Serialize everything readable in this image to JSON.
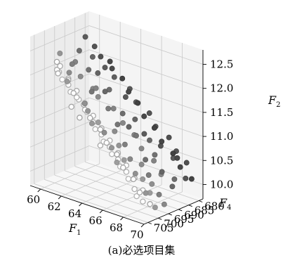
{
  "caption": "(a)必选项目集",
  "chart_data": {
    "type": "scatter",
    "projection": "3d",
    "title": "",
    "axes": {
      "x": {
        "label": "F",
        "subscript": "1",
        "ticks": [
          60,
          62,
          64,
          66,
          68,
          70
        ],
        "tick_labels": [
          "60",
          "62",
          "64",
          "66",
          "68",
          "70"
        ],
        "range": [
          59,
          70
        ]
      },
      "y": {
        "label": "F",
        "subscript": "4",
        "ticks": [
          680,
          685,
          690,
          695,
          700,
          705
        ],
        "tick_labels": [
          "680",
          "685",
          "690",
          "695",
          "700",
          "705"
        ],
        "range": [
          678,
          707
        ]
      },
      "z": {
        "label": "F",
        "subscript": "2",
        "ticks": [
          10.0,
          10.5,
          11.0,
          11.5,
          12.0,
          12.5
        ],
        "tick_labels": [
          "10.0",
          "10.5",
          "11.0",
          "11.5",
          "12.0",
          "12.5"
        ],
        "range": [
          9.7,
          12.8
        ]
      }
    },
    "grid": true,
    "colors": {
      "pane_left": "#ececec",
      "pane_right": "#f4f4f4",
      "pane_floor": "#f7f7f7",
      "point_dark": "#3a3a3a",
      "point_light": "#b5b5b5"
    },
    "series": [
      {
        "points": [
          [
            60.5,
            694,
            12.1
          ],
          [
            60.8,
            697,
            12.0
          ],
          [
            61.2,
            700,
            11.9
          ],
          [
            61.5,
            691,
            12.0
          ],
          [
            61.8,
            688,
            11.9
          ],
          [
            62.2,
            703,
            11.5
          ],
          [
            62.5,
            698,
            11.5
          ],
          [
            62.8,
            702,
            11.3
          ],
          [
            63.0,
            695,
            11.8
          ],
          [
            63.3,
            690,
            11.7
          ],
          [
            63.6,
            700,
            11.2
          ],
          [
            63.9,
            685,
            11.5
          ],
          [
            64.2,
            697,
            11.0
          ],
          [
            64.5,
            692,
            11.1
          ],
          [
            64.8,
            688,
            11.0
          ],
          [
            65.0,
            703,
            10.9
          ],
          [
            65.3,
            699,
            10.8
          ],
          [
            65.6,
            694,
            10.8
          ],
          [
            65.9,
            686,
            10.9
          ],
          [
            66.2,
            701,
            10.6
          ],
          [
            66.5,
            696,
            10.6
          ],
          [
            66.8,
            690,
            10.5
          ],
          [
            67.1,
            684,
            10.7
          ],
          [
            67.4,
            698,
            10.4
          ],
          [
            67.7,
            693,
            10.3
          ],
          [
            68.0,
            688,
            10.3
          ],
          [
            68.3,
            682,
            10.5
          ],
          [
            68.6,
            699,
            10.1
          ],
          [
            68.9,
            694,
            10.0
          ],
          [
            69.2,
            689,
            10.1
          ],
          [
            69.5,
            684,
            10.2
          ],
          [
            69.7,
            700,
            9.9
          ],
          [
            69.8,
            696,
            9.9
          ],
          [
            60.3,
            699,
            12.4
          ],
          [
            60.6,
            702,
            12.3
          ],
          [
            61.0,
            704,
            12.2
          ],
          [
            61.4,
            705,
            12.2
          ],
          [
            61.9,
            706,
            12.1
          ],
          [
            62.3,
            705,
            12.0
          ],
          [
            62.7,
            706,
            11.9
          ],
          [
            63.1,
            705,
            11.8
          ],
          [
            63.5,
            706,
            11.8
          ],
          [
            63.9,
            705,
            11.6
          ],
          [
            64.3,
            706,
            11.6
          ],
          [
            64.7,
            705,
            11.4
          ],
          [
            65.1,
            706,
            11.3
          ],
          [
            65.5,
            705,
            11.2
          ],
          [
            65.9,
            706,
            11.1
          ],
          [
            66.3,
            705,
            11.0
          ],
          [
            66.7,
            706,
            10.9
          ],
          [
            67.1,
            705,
            10.8
          ],
          [
            67.5,
            706,
            10.7
          ],
          [
            67.9,
            705,
            10.6
          ],
          [
            68.3,
            706,
            10.5
          ],
          [
            68.7,
            705,
            10.3
          ],
          [
            69.1,
            706,
            10.2
          ],
          [
            69.5,
            705,
            10.1
          ],
          [
            60.9,
            703,
            12.1
          ],
          [
            61.7,
            702,
            12.0
          ],
          [
            62.4,
            703,
            11.8
          ],
          [
            63.2,
            702,
            11.6
          ],
          [
            64.0,
            703,
            11.4
          ],
          [
            64.8,
            702,
            11.2
          ],
          [
            65.6,
            703,
            11.0
          ],
          [
            66.4,
            702,
            10.8
          ],
          [
            67.2,
            703,
            10.6
          ],
          [
            68.0,
            702,
            10.4
          ],
          [
            68.8,
            703,
            10.2
          ],
          [
            69.6,
            702,
            10.0
          ],
          [
            61.3,
            704,
            12.3
          ],
          [
            62.1,
            704,
            12.1
          ],
          [
            62.9,
            704,
            11.9
          ],
          [
            63.7,
            704,
            11.7
          ],
          [
            64.5,
            704,
            11.5
          ],
          [
            65.3,
            704,
            11.3
          ],
          [
            66.1,
            704,
            11.1
          ],
          [
            66.9,
            704,
            10.9
          ],
          [
            67.7,
            704,
            10.7
          ],
          [
            68.5,
            704,
            10.5
          ],
          [
            69.3,
            704,
            10.3
          ],
          [
            60.2,
            686,
            12.5
          ],
          [
            60.7,
            684,
            12.3
          ],
          [
            61.1,
            683,
            12.1
          ],
          [
            61.6,
            681,
            12.0
          ],
          [
            62.0,
            682,
            11.9
          ],
          [
            62.6,
            680,
            11.7
          ],
          [
            63.4,
            681,
            11.5
          ],
          [
            64.1,
            680,
            11.3
          ],
          [
            64.9,
            681,
            11.1
          ],
          [
            65.7,
            680,
            10.9
          ],
          [
            66.6,
            681,
            10.7
          ],
          [
            67.5,
            680,
            10.5
          ],
          [
            68.4,
            681,
            10.3
          ],
          [
            69.3,
            680,
            10.1
          ],
          [
            63.0,
            699,
            11.4
          ],
          [
            64.4,
            701,
            11.3
          ],
          [
            65.2,
            697,
            11.1
          ],
          [
            66.0,
            699,
            10.9
          ],
          [
            66.9,
            701,
            10.7
          ],
          [
            67.8,
            697,
            10.6
          ],
          [
            68.5,
            700,
            10.4
          ],
          [
            69.0,
            698,
            10.3
          ],
          [
            69.4,
            701,
            10.2
          ],
          [
            62.0,
            692,
            11.6
          ],
          [
            62.7,
            689,
            11.6
          ],
          [
            63.8,
            693,
            11.4
          ],
          [
            64.6,
            690,
            11.3
          ],
          [
            65.4,
            688,
            11.2
          ],
          [
            66.3,
            692,
            11.0
          ],
          [
            67.0,
            689,
            10.9
          ],
          [
            67.9,
            691,
            10.7
          ],
          [
            68.7,
            686,
            10.6
          ],
          [
            69.6,
            690,
            10.3
          ],
          [
            61.0,
            695,
            12.2
          ],
          [
            61.9,
            697,
            12.0
          ],
          [
            62.9,
            696,
            11.8
          ],
          [
            63.6,
            697,
            11.7
          ],
          [
            64.7,
            695,
            11.5
          ],
          [
            65.8,
            696,
            11.3
          ],
          [
            66.7,
            695,
            11.1
          ],
          [
            67.6,
            696,
            10.9
          ],
          [
            68.6,
            695,
            10.7
          ],
          [
            69.5,
            696,
            10.5
          ],
          [
            60.4,
            690,
            12.3
          ],
          [
            61.3,
            688,
            12.2
          ],
          [
            62.1,
            686,
            12.0
          ],
          [
            63.2,
            687,
            11.9
          ],
          [
            64.3,
            685,
            11.7
          ],
          [
            65.1,
            686,
            11.5
          ],
          [
            66.0,
            684,
            11.3
          ],
          [
            66.8,
            685,
            11.1
          ],
          [
            67.7,
            683,
            10.9
          ],
          [
            68.6,
            684,
            10.7
          ],
          [
            69.4,
            683,
            10.5
          ]
        ]
      }
    ]
  }
}
